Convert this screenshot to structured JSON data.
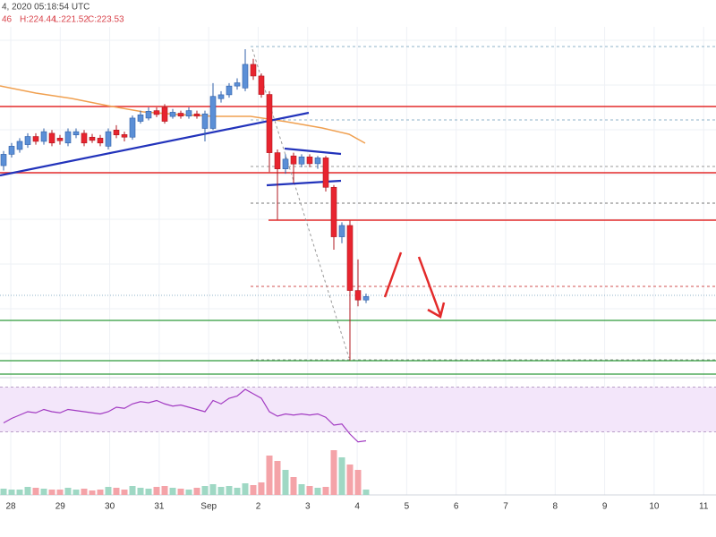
{
  "chart_data": {
    "type": "candlestick",
    "header_time": "4, 2020 05:18:54 UTC",
    "header_ohlc": [
      "46",
      "H:224.44",
      "L:221.52",
      "C:223.53"
    ],
    "x_labels": [
      "28",
      "29",
      "30",
      "31",
      "Sep",
      "2",
      "3",
      "4",
      "5",
      "6",
      "7",
      "8",
      "9",
      "10",
      "11"
    ],
    "ylim": [
      199,
      315.2
    ],
    "up_color": "#5b8fd6",
    "down_color": "#e8242f",
    "open": [
      264,
      267.5,
      269,
      270.5,
      273,
      271.5,
      274,
      272.5,
      271,
      273.5,
      274,
      272.8,
      272.5,
      270,
      275,
      273.6,
      272.8,
      277.7,
      278.7,
      281,
      282,
      279.2,
      280.2,
      279.3,
      280,
      275.5,
      275.5,
      284.7,
      285.9,
      288.6,
      288,
      295.3,
      291.7,
      286,
      268,
      263,
      267,
      264.5,
      266.7,
      264.6,
      266.4,
      257.3,
      242,
      245.5,
      225.4,
      222.46
    ],
    "high": [
      268.5,
      271,
      272.5,
      274,
      274,
      275.5,
      275,
      273.5,
      275.5,
      275.5,
      275,
      273.8,
      273.5,
      275.5,
      276.5,
      274.5,
      279.5,
      281,
      282,
      282,
      283,
      281.5,
      281,
      282,
      281,
      281,
      289.5,
      287,
      289.5,
      291,
      300,
      297,
      292.5,
      287,
      269,
      267.5,
      268,
      267.5,
      267.5,
      267,
      267,
      258,
      246.5,
      247,
      235,
      224.44
    ],
    "low": [
      262.5,
      266.5,
      268,
      269.5,
      270.5,
      270.5,
      270,
      270.5,
      270,
      272.5,
      270,
      271,
      270,
      269,
      272.5,
      271.5,
      272,
      277,
      278,
      279,
      277,
      278.5,
      278.5,
      278.5,
      278.5,
      271.5,
      275,
      283.5,
      285,
      287.5,
      287,
      290.5,
      285,
      262,
      247.3,
      261.5,
      258.6,
      263.5,
      263.5,
      263,
      256,
      238,
      240,
      203.8,
      220.5,
      221.52
    ],
    "close": [
      267.5,
      270,
      271.5,
      273,
      271.5,
      274.5,
      271,
      271.7,
      274.5,
      274.5,
      271,
      271.8,
      271,
      274.5,
      273.5,
      272.8,
      278.7,
      279.7,
      280.8,
      279.8,
      277.7,
      280.5,
      279.3,
      281,
      279.3,
      280,
      285.4,
      285.9,
      288.6,
      289.6,
      295.3,
      291.7,
      286,
      268,
      263,
      266,
      264.5,
      266.7,
      264.6,
      266.4,
      257.3,
      242,
      245.5,
      225.4,
      222.46,
      223.53
    ],
    "rsi": {
      "color": "#a23bc2",
      "ylim": [
        0,
        76
      ],
      "band": [
        30,
        70
      ],
      "values": [
        38,
        42,
        45,
        48,
        47,
        50,
        48,
        47,
        50,
        49,
        48,
        47,
        46,
        48,
        52,
        51,
        55,
        57,
        56,
        58,
        55,
        53,
        54,
        52,
        50,
        48,
        58,
        55,
        60,
        62,
        68,
        64,
        60,
        48,
        44,
        46,
        45,
        46,
        45,
        46,
        43,
        36,
        37,
        28,
        21,
        22
      ]
    },
    "volume": {
      "ylim": [
        0,
        56
      ],
      "up_color": "#9fd8c4",
      "down_color": "#f4a3a8",
      "values": [
        7,
        6,
        6,
        9,
        8,
        7,
        6,
        6,
        8,
        6,
        7,
        5,
        6,
        9,
        8,
        6,
        10,
        8,
        7,
        9,
        10,
        8,
        7,
        6,
        8,
        10,
        12,
        9,
        10,
        8,
        13,
        11,
        14,
        44,
        38,
        28,
        20,
        12,
        10,
        8,
        9,
        50,
        42,
        34,
        28,
        6
      ]
    }
  }
}
